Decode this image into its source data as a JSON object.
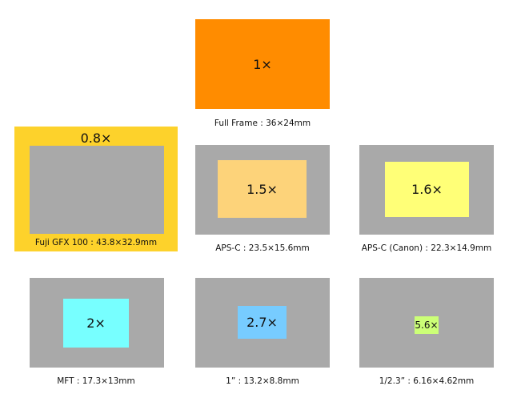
{
  "sensors": [
    {
      "crop": "1×",
      "label": "Full Frame : 36×24mm"
    },
    {
      "crop": "0.8×",
      "label": "Fuji GFX 100 : 43.8×32.9mm"
    },
    {
      "crop": "1.5×",
      "label": "APS-C : 23.5×15.6mm"
    },
    {
      "crop": "1.6×",
      "label": "APS-C (Canon) : 22.3×14.9mm"
    },
    {
      "crop": "2×",
      "label": "MFT : 17.3×13mm"
    },
    {
      "crop": "2.7×",
      "label": "1” : 13.2×8.8mm"
    },
    {
      "crop": "5.6×",
      "label": "1/2.3” : 6.16×4.62mm"
    }
  ]
}
